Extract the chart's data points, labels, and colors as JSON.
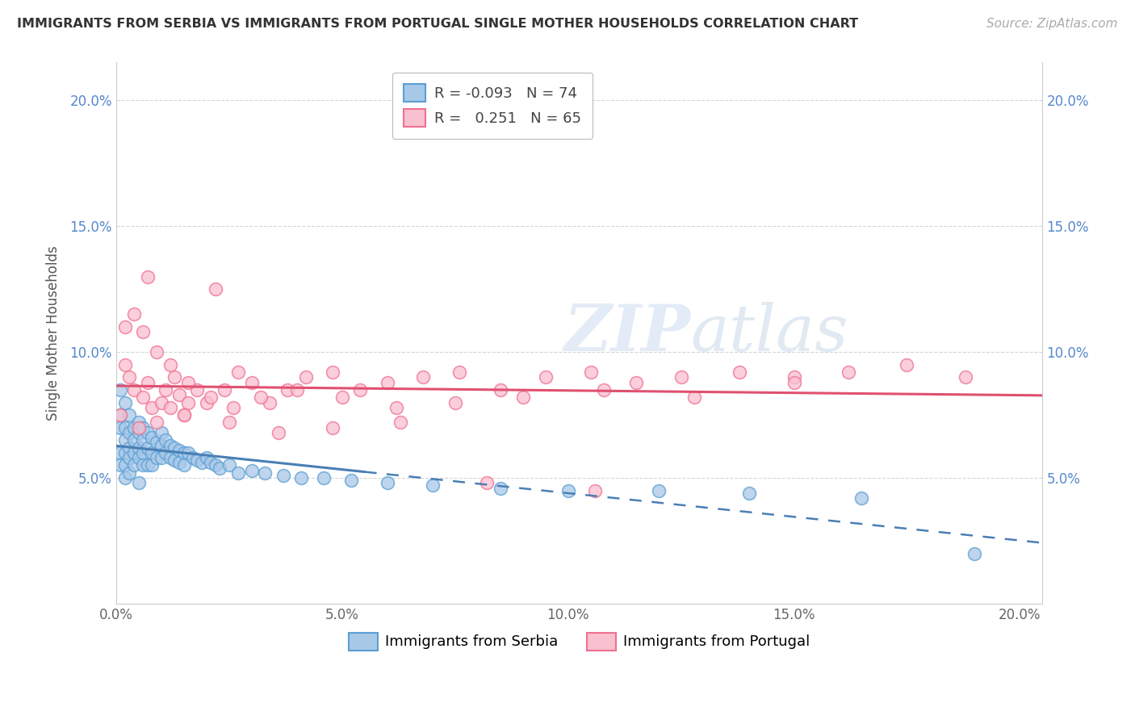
{
  "title": "IMMIGRANTS FROM SERBIA VS IMMIGRANTS FROM PORTUGAL SINGLE MOTHER HOUSEHOLDS CORRELATION CHART",
  "source": "Source: ZipAtlas.com",
  "ylabel": "Single Mother Households",
  "serbia_color": "#a8c8e8",
  "serbia_edge_color": "#5a9fd4",
  "portugal_color": "#f9c0cf",
  "portugal_edge_color": "#f07090",
  "serbia_line_color": "#4a7fb5",
  "portugal_line_color": "#e05070",
  "watermark_color": "#b0c8e8",
  "xlim": [
    0.0,
    0.205
  ],
  "ylim": [
    0.0,
    0.215
  ],
  "xticks": [
    0.0,
    0.05,
    0.1,
    0.15,
    0.2
  ],
  "yticks": [
    0.0,
    0.05,
    0.1,
    0.15,
    0.2
  ],
  "xticklabels": [
    "0.0%",
    "5.0%",
    "10.0%",
    "15.0%",
    "20.0%"
  ],
  "left_yticklabels": [
    "",
    "5.0%",
    "10.0%",
    "15.0%",
    "20.0%"
  ],
  "right_yticklabels": [
    "",
    "5.0%",
    "10.0%",
    "15.0%",
    "20.0%"
  ],
  "serbia_R": -0.093,
  "serbia_N": 74,
  "portugal_R": 0.251,
  "portugal_N": 65,
  "serbia_trend_solid_end": 0.055,
  "serbia_x": [
    0.001,
    0.001,
    0.001,
    0.001,
    0.001,
    0.002,
    0.002,
    0.002,
    0.002,
    0.002,
    0.002,
    0.003,
    0.003,
    0.003,
    0.003,
    0.003,
    0.004,
    0.004,
    0.004,
    0.004,
    0.005,
    0.005,
    0.005,
    0.005,
    0.005,
    0.006,
    0.006,
    0.006,
    0.006,
    0.007,
    0.007,
    0.007,
    0.008,
    0.008,
    0.008,
    0.009,
    0.009,
    0.01,
    0.01,
    0.01,
    0.011,
    0.011,
    0.012,
    0.012,
    0.013,
    0.013,
    0.014,
    0.014,
    0.015,
    0.015,
    0.016,
    0.017,
    0.018,
    0.019,
    0.02,
    0.021,
    0.022,
    0.023,
    0.025,
    0.027,
    0.03,
    0.033,
    0.037,
    0.041,
    0.046,
    0.052,
    0.06,
    0.07,
    0.085,
    0.1,
    0.12,
    0.14,
    0.165,
    0.19
  ],
  "serbia_y": [
    0.075,
    0.085,
    0.07,
    0.06,
    0.055,
    0.08,
    0.07,
    0.065,
    0.06,
    0.055,
    0.05,
    0.075,
    0.068,
    0.062,
    0.058,
    0.052,
    0.07,
    0.065,
    0.06,
    0.055,
    0.072,
    0.068,
    0.062,
    0.058,
    0.048,
    0.07,
    0.065,
    0.06,
    0.055,
    0.068,
    0.062,
    0.055,
    0.066,
    0.06,
    0.055,
    0.064,
    0.058,
    0.068,
    0.063,
    0.058,
    0.065,
    0.06,
    0.063,
    0.058,
    0.062,
    0.057,
    0.061,
    0.056,
    0.06,
    0.055,
    0.06,
    0.058,
    0.057,
    0.056,
    0.058,
    0.056,
    0.055,
    0.054,
    0.055,
    0.052,
    0.053,
    0.052,
    0.051,
    0.05,
    0.05,
    0.049,
    0.048,
    0.047,
    0.046,
    0.045,
    0.045,
    0.044,
    0.042,
    0.02
  ],
  "portugal_x": [
    0.001,
    0.002,
    0.003,
    0.004,
    0.005,
    0.006,
    0.007,
    0.008,
    0.009,
    0.01,
    0.011,
    0.012,
    0.013,
    0.014,
    0.015,
    0.016,
    0.018,
    0.02,
    0.022,
    0.024,
    0.027,
    0.03,
    0.034,
    0.038,
    0.042,
    0.048,
    0.054,
    0.06,
    0.068,
    0.076,
    0.085,
    0.095,
    0.105,
    0.115,
    0.125,
    0.138,
    0.15,
    0.162,
    0.175,
    0.188,
    0.002,
    0.004,
    0.006,
    0.009,
    0.012,
    0.016,
    0.021,
    0.026,
    0.032,
    0.04,
    0.05,
    0.062,
    0.075,
    0.09,
    0.108,
    0.128,
    0.15,
    0.007,
    0.015,
    0.025,
    0.036,
    0.048,
    0.063,
    0.082,
    0.106
  ],
  "portugal_y": [
    0.075,
    0.095,
    0.09,
    0.085,
    0.07,
    0.082,
    0.088,
    0.078,
    0.072,
    0.08,
    0.085,
    0.078,
    0.09,
    0.083,
    0.075,
    0.08,
    0.085,
    0.08,
    0.125,
    0.085,
    0.092,
    0.088,
    0.08,
    0.085,
    0.09,
    0.092,
    0.085,
    0.088,
    0.09,
    0.092,
    0.085,
    0.09,
    0.092,
    0.088,
    0.09,
    0.092,
    0.09,
    0.092,
    0.095,
    0.09,
    0.11,
    0.115,
    0.108,
    0.1,
    0.095,
    0.088,
    0.082,
    0.078,
    0.082,
    0.085,
    0.082,
    0.078,
    0.08,
    0.082,
    0.085,
    0.082,
    0.088,
    0.13,
    0.075,
    0.072,
    0.068,
    0.07,
    0.072,
    0.048,
    0.045
  ]
}
